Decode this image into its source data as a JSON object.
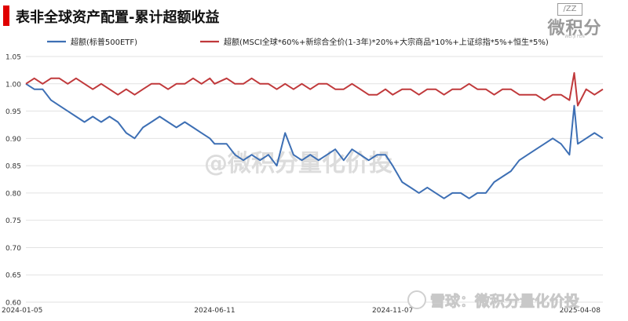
{
  "header": {
    "title": "表非全球资产配置-累计超额收益",
    "logo_box": "/ZZ",
    "logo_name": "微积分",
    "logo_sub": "WEI JI FEN"
  },
  "watermarks": {
    "center": "@微积分量化价投",
    "bottom": "雪球：微积分量化价投"
  },
  "colors": {
    "series1": "#3d6fb4",
    "series2": "#c0393b"
  },
  "chart_data": {
    "type": "line",
    "x_ticks": [
      "2024-01-05",
      "2024-06-11",
      "2024-11-07",
      "2025-04-08"
    ],
    "y_ticks": [
      "1.05",
      "1.00",
      "0.95",
      "0.90",
      "0.85",
      "0.80",
      "0.75",
      "0.70",
      "0.65",
      "0.60"
    ],
    "ylim": [
      0.6,
      1.05
    ],
    "legend_placement": "top",
    "grid": "horizontal",
    "series": [
      {
        "name": "超额(标普500ETF)",
        "color": "#3d6fb4",
        "x": [
          "2024-01-05",
          "2024-01-12",
          "2024-01-19",
          "2024-01-26",
          "2024-02-02",
          "2024-02-09",
          "2024-02-16",
          "2024-02-23",
          "2024-03-01",
          "2024-03-08",
          "2024-03-15",
          "2024-03-22",
          "2024-03-29",
          "2024-04-05",
          "2024-04-12",
          "2024-04-19",
          "2024-04-26",
          "2024-05-03",
          "2024-05-10",
          "2024-05-17",
          "2024-05-24",
          "2024-05-31",
          "2024-06-07",
          "2024-06-11",
          "2024-06-21",
          "2024-06-28",
          "2024-07-05",
          "2024-07-12",
          "2024-07-19",
          "2024-07-26",
          "2024-08-02",
          "2024-08-09",
          "2024-08-16",
          "2024-08-23",
          "2024-08-30",
          "2024-09-06",
          "2024-09-13",
          "2024-09-20",
          "2024-09-27",
          "2024-10-04",
          "2024-10-11",
          "2024-10-18",
          "2024-10-25",
          "2024-11-01",
          "2024-11-07",
          "2024-11-15",
          "2024-11-22",
          "2024-11-29",
          "2024-12-06",
          "2024-12-13",
          "2024-12-20",
          "2024-12-27",
          "2025-01-03",
          "2025-01-10",
          "2025-01-17",
          "2025-01-24",
          "2025-01-31",
          "2025-02-07",
          "2025-02-14",
          "2025-02-21",
          "2025-02-28",
          "2025-03-07",
          "2025-03-14",
          "2025-03-21",
          "2025-03-28",
          "2025-04-04",
          "2025-04-08",
          "2025-04-11",
          "2025-04-18",
          "2025-04-25",
          "2025-05-02"
        ],
        "values": [
          1.0,
          0.99,
          0.99,
          0.97,
          0.96,
          0.95,
          0.94,
          0.93,
          0.94,
          0.93,
          0.94,
          0.93,
          0.91,
          0.9,
          0.92,
          0.93,
          0.94,
          0.93,
          0.92,
          0.93,
          0.92,
          0.91,
          0.9,
          0.89,
          0.89,
          0.87,
          0.86,
          0.87,
          0.86,
          0.87,
          0.85,
          0.91,
          0.87,
          0.86,
          0.87,
          0.86,
          0.87,
          0.88,
          0.86,
          0.88,
          0.87,
          0.86,
          0.87,
          0.87,
          0.85,
          0.82,
          0.81,
          0.8,
          0.81,
          0.8,
          0.79,
          0.8,
          0.8,
          0.79,
          0.8,
          0.8,
          0.82,
          0.83,
          0.84,
          0.86,
          0.87,
          0.88,
          0.89,
          0.9,
          0.89,
          0.87,
          0.96,
          0.89,
          0.9,
          0.91,
          0.9
        ]
      },
      {
        "name": "超额(MSCI全球*60%+新综合全价(1-3年)*20%+大宗商品*10%+上证综指*5%+恒生*5%)",
        "color": "#c0393b",
        "x": [
          "2024-01-05",
          "2024-01-12",
          "2024-01-19",
          "2024-01-26",
          "2024-02-02",
          "2024-02-09",
          "2024-02-16",
          "2024-02-23",
          "2024-03-01",
          "2024-03-08",
          "2024-03-15",
          "2024-03-22",
          "2024-03-29",
          "2024-04-05",
          "2024-04-12",
          "2024-04-19",
          "2024-04-26",
          "2024-05-03",
          "2024-05-10",
          "2024-05-17",
          "2024-05-24",
          "2024-05-31",
          "2024-06-07",
          "2024-06-11",
          "2024-06-21",
          "2024-06-28",
          "2024-07-05",
          "2024-07-12",
          "2024-07-19",
          "2024-07-26",
          "2024-08-02",
          "2024-08-09",
          "2024-08-16",
          "2024-08-23",
          "2024-08-30",
          "2024-09-06",
          "2024-09-13",
          "2024-09-20",
          "2024-09-27",
          "2024-10-04",
          "2024-10-11",
          "2024-10-18",
          "2024-10-25",
          "2024-11-01",
          "2024-11-07",
          "2024-11-15",
          "2024-11-22",
          "2024-11-29",
          "2024-12-06",
          "2024-12-13",
          "2024-12-20",
          "2024-12-27",
          "2025-01-03",
          "2025-01-10",
          "2025-01-17",
          "2025-01-24",
          "2025-01-31",
          "2025-02-07",
          "2025-02-14",
          "2025-02-21",
          "2025-02-28",
          "2025-03-07",
          "2025-03-14",
          "2025-03-21",
          "2025-03-28",
          "2025-04-04",
          "2025-04-08",
          "2025-04-11",
          "2025-04-18",
          "2025-04-25",
          "2025-05-02"
        ],
        "values": [
          1.0,
          1.01,
          1.0,
          1.01,
          1.01,
          1.0,
          1.01,
          1.0,
          0.99,
          1.0,
          0.99,
          0.98,
          0.99,
          0.98,
          0.99,
          1.0,
          1.0,
          0.99,
          1.0,
          1.0,
          1.01,
          1.0,
          1.01,
          1.0,
          1.01,
          1.0,
          1.0,
          1.01,
          1.0,
          1.0,
          0.99,
          1.0,
          0.99,
          1.0,
          0.99,
          1.0,
          1.0,
          0.99,
          0.99,
          1.0,
          0.99,
          0.98,
          0.98,
          0.99,
          0.98,
          0.99,
          0.99,
          0.98,
          0.99,
          0.99,
          0.98,
          0.99,
          0.99,
          1.0,
          0.99,
          0.99,
          0.98,
          0.99,
          0.99,
          0.98,
          0.98,
          0.98,
          0.97,
          0.98,
          0.98,
          0.97,
          1.02,
          0.96,
          0.99,
          0.98,
          0.99
        ]
      }
    ]
  }
}
